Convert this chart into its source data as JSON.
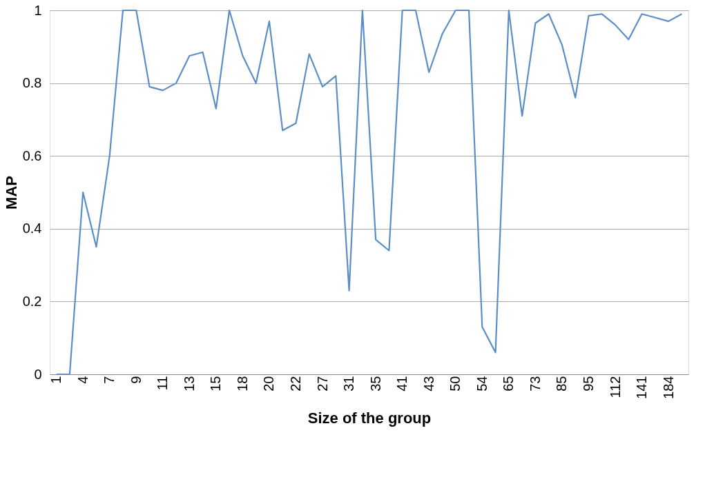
{
  "chart_data": {
    "type": "line",
    "xlabel": "Size of the group",
    "ylabel": "MAP",
    "categories": [
      "1",
      null,
      "4",
      null,
      "7",
      null,
      "9",
      null,
      "11",
      null,
      "13",
      null,
      "15",
      null,
      "18",
      null,
      "20",
      null,
      "22",
      null,
      "27",
      null,
      "31",
      null,
      "35",
      null,
      "41",
      null,
      "43",
      null,
      "50",
      null,
      "54",
      null,
      "65",
      null,
      "73",
      null,
      "85",
      null,
      "95",
      null,
      "112",
      null,
      "141",
      null,
      "184",
      null
    ],
    "series": [
      {
        "color": "#5b8dc8",
        "values": [
          0,
          0,
          0.5,
          0.35,
          0.6,
          1.0,
          1.0,
          0.79,
          0.78,
          0.8,
          0.875,
          0.885,
          0.73,
          1.0,
          0.875,
          0.8,
          0.97,
          0.67,
          0.69,
          0.88,
          0.79,
          0.82,
          0.23,
          1.0,
          0.37,
          0.34,
          1.0,
          1.0,
          0.83,
          0.935,
          1.0,
          1.0,
          0.13,
          0.06,
          1.0,
          0.71,
          0.965,
          0.99,
          0.905,
          0.76,
          0.985,
          0.99,
          0.96,
          0.92,
          0.99,
          0.98,
          0.97,
          0.99
        ]
      }
    ],
    "ylim": [
      0,
      1
    ],
    "yticks": [
      0,
      0.2,
      0.4,
      0.6,
      0.8,
      1
    ],
    "grid": "y",
    "marker": "none",
    "line_style": "solid"
  }
}
